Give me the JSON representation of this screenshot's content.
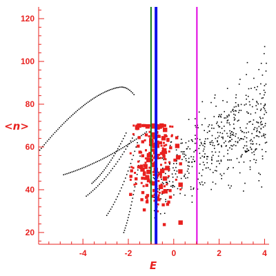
{
  "colors": {
    "axis": "#e8201e",
    "black_points": "#000000",
    "red_points": "#e8201e",
    "line_green": "#0f7a12",
    "line_blue": "#1010e8",
    "line_magenta": "#e000e0"
  },
  "chart_data": {
    "type": "scatter",
    "title": "",
    "xlabel": "E",
    "ylabel": "<n>",
    "xlim": [
      -5.95,
      4.2
    ],
    "ylim": [
      14.5,
      125.5
    ],
    "xticks": [
      -4,
      -2,
      0,
      2,
      4
    ],
    "yticks": [
      20,
      40,
      60,
      80,
      100,
      120
    ],
    "grid": false,
    "vlines": [
      {
        "x": -1.0,
        "color": "#0f7a12"
      },
      {
        "x": -0.78,
        "color": "#1010e8"
      },
      {
        "x": 1.02,
        "color": "#e000e0"
      }
    ],
    "ridges": [
      {
        "start": [
          -5.9,
          58.5
        ],
        "peak": [
          -2.3,
          88
        ],
        "end": [
          -1.75,
          84.5
        ],
        "count": 64
      },
      {
        "start": [
          -4.85,
          47
        ],
        "end": [
          -1.2,
          67
        ],
        "count": 50
      },
      {
        "start": [
          -3.6,
          43
        ],
        "end": [
          -2.1,
          66.5
        ],
        "count": 26
      },
      {
        "start": [
          -3.85,
          37
        ],
        "end": [
          -1.75,
          65.5
        ],
        "count": 30
      },
      {
        "start": [
          -2.95,
          28
        ],
        "end": [
          -1.6,
          62
        ],
        "count": 24
      },
      {
        "start": [
          -2.2,
          20
        ],
        "end": [
          -1.45,
          58
        ],
        "count": 24
      }
    ],
    "black_cloud": {
      "x_range": [
        -0.9,
        4.1
      ],
      "y_center_at_x0": 48,
      "slope": 7,
      "spread": 13,
      "count": 520
    },
    "red_cluster": {
      "x_range": [
        -1.9,
        0.3
      ],
      "y_range": [
        18,
        70
      ],
      "count": 220
    }
  }
}
